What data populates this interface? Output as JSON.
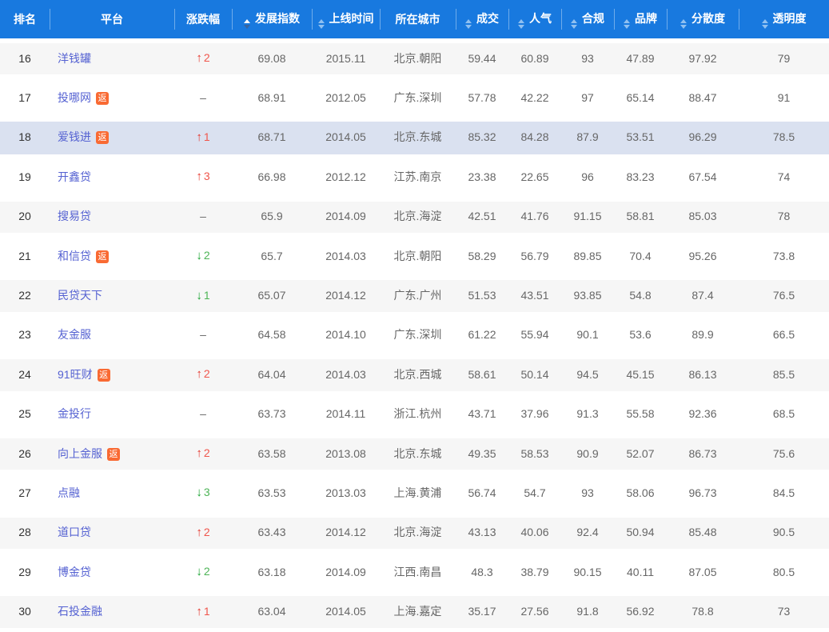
{
  "icons": {
    "up": "↑",
    "down": "↓"
  },
  "table": {
    "badge_label": "返",
    "columns": [
      {
        "key": "rank",
        "label": "排名",
        "sortable": false,
        "sort_state": "none"
      },
      {
        "key": "platform",
        "label": "平台",
        "sortable": false,
        "sort_state": "none"
      },
      {
        "key": "change",
        "label": "涨跌幅",
        "sortable": false,
        "sort_state": "none"
      },
      {
        "key": "dev-index",
        "label": "发展指数",
        "sortable": true,
        "sort_state": "asc"
      },
      {
        "key": "launch",
        "label": "上线时间",
        "sortable": true,
        "sort_state": "none"
      },
      {
        "key": "city",
        "label": "所在城市",
        "sortable": false,
        "sort_state": "none"
      },
      {
        "key": "volume",
        "label": "成交",
        "sortable": true,
        "sort_state": "none"
      },
      {
        "key": "popularity",
        "label": "人气",
        "sortable": true,
        "sort_state": "none"
      },
      {
        "key": "compliance",
        "label": "合规",
        "sortable": true,
        "sort_state": "none"
      },
      {
        "key": "brand",
        "label": "品牌",
        "sortable": true,
        "sort_state": "none"
      },
      {
        "key": "dispersion",
        "label": "分散度",
        "sortable": true,
        "sort_state": "none"
      },
      {
        "key": "transparency",
        "label": "透明度",
        "sortable": true,
        "sort_state": "none"
      }
    ],
    "rows": [
      {
        "rank": "16",
        "platform": "洋钱罐",
        "has_badge": false,
        "highlighted": false,
        "change_dir": "up",
        "change_value": "2",
        "dev_index": "69.08",
        "launch": "2015.11",
        "city": "北京.朝阳",
        "volume": "59.44",
        "popularity": "60.89",
        "compliance": "93",
        "brand": "47.89",
        "dispersion": "97.92",
        "transparency": "79"
      },
      {
        "rank": "17",
        "platform": "投哪网",
        "has_badge": true,
        "highlighted": false,
        "change_dir": "flat",
        "change_value": "–",
        "dev_index": "68.91",
        "launch": "2012.05",
        "city": "广东.深圳",
        "volume": "57.78",
        "popularity": "42.22",
        "compliance": "97",
        "brand": "65.14",
        "dispersion": "88.47",
        "transparency": "91"
      },
      {
        "rank": "18",
        "platform": "爱钱进",
        "has_badge": true,
        "highlighted": true,
        "change_dir": "up",
        "change_value": "1",
        "dev_index": "68.71",
        "launch": "2014.05",
        "city": "北京.东城",
        "volume": "85.32",
        "popularity": "84.28",
        "compliance": "87.9",
        "brand": "53.51",
        "dispersion": "96.29",
        "transparency": "78.5"
      },
      {
        "rank": "19",
        "platform": "开鑫贷",
        "has_badge": false,
        "highlighted": false,
        "change_dir": "up",
        "change_value": "3",
        "dev_index": "66.98",
        "launch": "2012.12",
        "city": "江苏.南京",
        "volume": "23.38",
        "popularity": "22.65",
        "compliance": "96",
        "brand": "83.23",
        "dispersion": "67.54",
        "transparency": "74"
      },
      {
        "rank": "20",
        "platform": "搜易贷",
        "has_badge": false,
        "highlighted": false,
        "change_dir": "flat",
        "change_value": "–",
        "dev_index": "65.9",
        "launch": "2014.09",
        "city": "北京.海淀",
        "volume": "42.51",
        "popularity": "41.76",
        "compliance": "91.15",
        "brand": "58.81",
        "dispersion": "85.03",
        "transparency": "78"
      },
      {
        "rank": "21",
        "platform": "和信贷",
        "has_badge": true,
        "highlighted": false,
        "change_dir": "down",
        "change_value": "2",
        "dev_index": "65.7",
        "launch": "2014.03",
        "city": "北京.朝阳",
        "volume": "58.29",
        "popularity": "56.79",
        "compliance": "89.85",
        "brand": "70.4",
        "dispersion": "95.26",
        "transparency": "73.8"
      },
      {
        "rank": "22",
        "platform": "民贷天下",
        "has_badge": false,
        "highlighted": false,
        "change_dir": "down",
        "change_value": "1",
        "dev_index": "65.07",
        "launch": "2014.12",
        "city": "广东.广州",
        "volume": "51.53",
        "popularity": "43.51",
        "compliance": "93.85",
        "brand": "54.8",
        "dispersion": "87.4",
        "transparency": "76.5"
      },
      {
        "rank": "23",
        "platform": "友金服",
        "has_badge": false,
        "highlighted": false,
        "change_dir": "flat",
        "change_value": "–",
        "dev_index": "64.58",
        "launch": "2014.10",
        "city": "广东.深圳",
        "volume": "61.22",
        "popularity": "55.94",
        "compliance": "90.1",
        "brand": "53.6",
        "dispersion": "89.9",
        "transparency": "66.5"
      },
      {
        "rank": "24",
        "platform": "91旺财",
        "has_badge": true,
        "highlighted": false,
        "change_dir": "up",
        "change_value": "2",
        "dev_index": "64.04",
        "launch": "2014.03",
        "city": "北京.西城",
        "volume": "58.61",
        "popularity": "50.14",
        "compliance": "94.5",
        "brand": "45.15",
        "dispersion": "86.13",
        "transparency": "85.5"
      },
      {
        "rank": "25",
        "platform": "金投行",
        "has_badge": false,
        "highlighted": false,
        "change_dir": "flat",
        "change_value": "–",
        "dev_index": "63.73",
        "launch": "2014.11",
        "city": "浙江.杭州",
        "volume": "43.71",
        "popularity": "37.96",
        "compliance": "91.3",
        "brand": "55.58",
        "dispersion": "92.36",
        "transparency": "68.5"
      },
      {
        "rank": "26",
        "platform": "向上金服",
        "has_badge": true,
        "highlighted": false,
        "change_dir": "up",
        "change_value": "2",
        "dev_index": "63.58",
        "launch": "2013.08",
        "city": "北京.东城",
        "volume": "49.35",
        "popularity": "58.53",
        "compliance": "90.9",
        "brand": "52.07",
        "dispersion": "86.73",
        "transparency": "75.6"
      },
      {
        "rank": "27",
        "platform": "点融",
        "has_badge": false,
        "highlighted": false,
        "change_dir": "down",
        "change_value": "3",
        "dev_index": "63.53",
        "launch": "2013.03",
        "city": "上海.黄浦",
        "volume": "56.74",
        "popularity": "54.7",
        "compliance": "93",
        "brand": "58.06",
        "dispersion": "96.73",
        "transparency": "84.5"
      },
      {
        "rank": "28",
        "platform": "道口贷",
        "has_badge": false,
        "highlighted": false,
        "change_dir": "up",
        "change_value": "2",
        "dev_index": "63.43",
        "launch": "2014.12",
        "city": "北京.海淀",
        "volume": "43.13",
        "popularity": "40.06",
        "compliance": "92.4",
        "brand": "50.94",
        "dispersion": "85.48",
        "transparency": "90.5"
      },
      {
        "rank": "29",
        "platform": "博金贷",
        "has_badge": false,
        "highlighted": false,
        "change_dir": "down",
        "change_value": "2",
        "dev_index": "63.18",
        "launch": "2014.09",
        "city": "江西.南昌",
        "volume": "48.3",
        "popularity": "38.79",
        "compliance": "90.15",
        "brand": "40.11",
        "dispersion": "87.05",
        "transparency": "80.5"
      },
      {
        "rank": "30",
        "platform": "石投金融",
        "has_badge": false,
        "highlighted": false,
        "change_dir": "up",
        "change_value": "1",
        "dev_index": "63.04",
        "launch": "2014.05",
        "city": "上海.嘉定",
        "volume": "35.17",
        "popularity": "27.56",
        "compliance": "91.8",
        "brand": "56.92",
        "dispersion": "78.8",
        "transparency": "73"
      }
    ]
  }
}
